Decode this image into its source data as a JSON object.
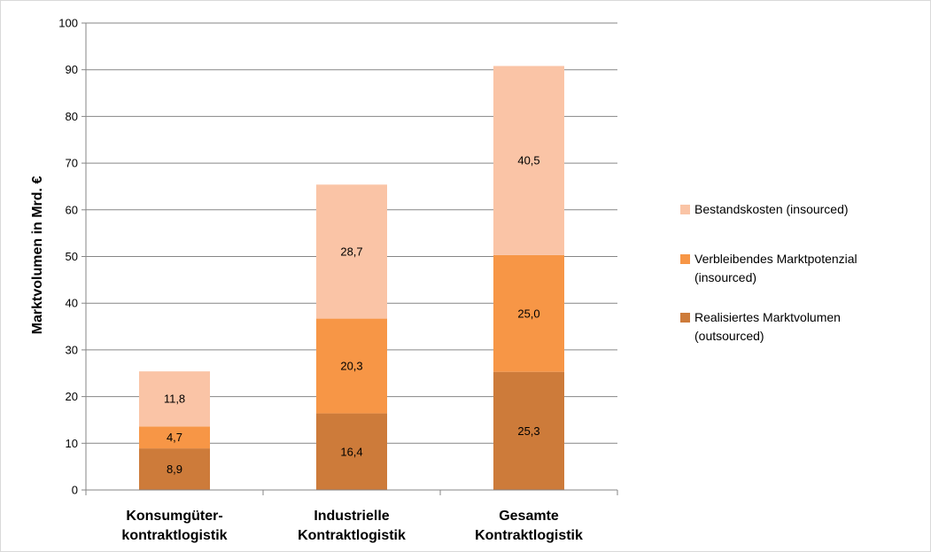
{
  "chart_data": {
    "type": "bar",
    "stacked": true,
    "categories": [
      "Konsumgüter-\nkontraktlogistik",
      "Industrielle\nKontraktlogistik",
      "Gesamte\nKontraktlogistik"
    ],
    "series": [
      {
        "name": "Realisiertes Marktvolumen (outsourced)",
        "values": [
          8.9,
          16.4,
          25.3
        ],
        "labels": [
          "8,9",
          "16,4",
          "25,3"
        ],
        "color": "#cd7b3a"
      },
      {
        "name": "Verbleibendes Marktpotenzial (insourced)",
        "values": [
          4.7,
          20.3,
          25.0
        ],
        "labels": [
          "4,7",
          "20,3",
          "25,0"
        ],
        "color": "#f79646"
      },
      {
        "name": "Bestandskosten (insourced)",
        "values": [
          11.8,
          28.7,
          40.5
        ],
        "labels": [
          "11,8",
          "28,7",
          "40,5"
        ],
        "color": "#fac4a6"
      }
    ],
    "ylabel": "Marktvolumen in Mrd. €",
    "xlabel": "",
    "ylim": [
      0,
      100
    ],
    "yticks": [
      0,
      10,
      20,
      30,
      40,
      50,
      60,
      70,
      80,
      90,
      100
    ],
    "grid": true,
    "legend_position": "right",
    "legend": [
      {
        "lines": [
          "Bestandskosten (insourced)"
        ],
        "color": "#fac4a6"
      },
      {
        "lines": [
          "Verbleibendes Marktpotenzial",
          "(insourced)"
        ],
        "color": "#f79646"
      },
      {
        "lines": [
          "Realisiertes Marktvolumen",
          "(outsourced)"
        ],
        "color": "#cd7b3a"
      }
    ]
  }
}
